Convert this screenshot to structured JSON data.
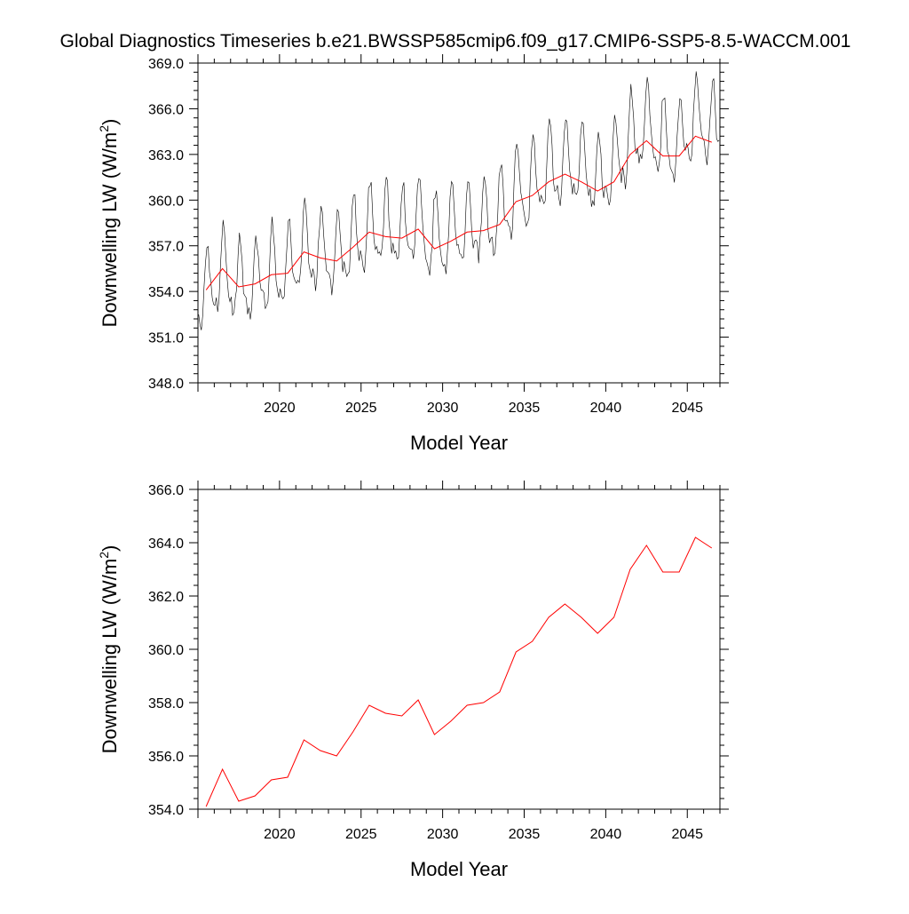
{
  "title": "Global Diagnostics Timeseries b.e21.BWSSP585cmip6.f09_g17.CMIP6-SSP5-8.5-WACCM.001",
  "colors": {
    "monthly": "#000000",
    "annual": "#ff0000",
    "frame": "#000000"
  },
  "chart_data": [
    {
      "type": "line",
      "panel": "top",
      "xlabel": "Model Year",
      "ylabel_main": "Downwelling LW (W/m",
      "ylabel_sup": "2",
      "ylabel_close": ")",
      "xlim": [
        2015,
        2047
      ],
      "ylim": [
        348.0,
        369.0
      ],
      "x_ticks": [
        "2020",
        "2025",
        "2030",
        "2035",
        "2040",
        "2045"
      ],
      "y_ticks": [
        "348.0",
        "351.0",
        "354.0",
        "357.0",
        "360.0",
        "363.0",
        "366.0",
        "369.0"
      ],
      "monthly_series": {
        "start_year": 2015,
        "amplitude_base": 2.4,
        "description": "monthly global-mean values oscillating seasonally around the annual mean"
      },
      "annual_series_ref": "annual"
    },
    {
      "type": "line",
      "panel": "bottom",
      "xlabel": "Model Year",
      "ylabel_main": "Downwelling LW (W/m",
      "ylabel_sup": "2",
      "ylabel_close": ")",
      "xlim": [
        2015,
        2047
      ],
      "ylim": [
        354.0,
        366.0
      ],
      "x_ticks": [
        "2020",
        "2025",
        "2030",
        "2035",
        "2040",
        "2045"
      ],
      "y_ticks": [
        "354.0",
        "356.0",
        "358.0",
        "360.0",
        "362.0",
        "364.0",
        "366.0"
      ],
      "annual_series_ref": "annual"
    }
  ],
  "annual": {
    "x": [
      2015.0,
      2016.0,
      2017.0,
      2018.0,
      2019.0,
      2020.0,
      2021.0,
      2022.0,
      2023.0,
      2024.0,
      2025.0,
      2026.0,
      2027.0,
      2028.0,
      2029.0,
      2030.0,
      2031.0,
      2032.0,
      2033.0,
      2034.0,
      2035.0,
      2036.0,
      2037.0,
      2038.0,
      2039.0,
      2040.0,
      2041.0,
      2042.0,
      2043.0,
      2044.0,
      2045.0,
      2046.0
    ],
    "y": [
      354.1,
      355.5,
      354.3,
      354.5,
      355.1,
      355.2,
      356.6,
      356.2,
      356.0,
      356.9,
      357.9,
      357.6,
      357.5,
      358.1,
      356.8,
      357.3,
      357.9,
      358.0,
      358.4,
      359.9,
      360.3,
      361.2,
      361.7,
      361.2,
      360.6,
      361.2,
      363.0,
      363.9,
      362.9,
      362.9,
      364.2,
      363.8
    ]
  }
}
